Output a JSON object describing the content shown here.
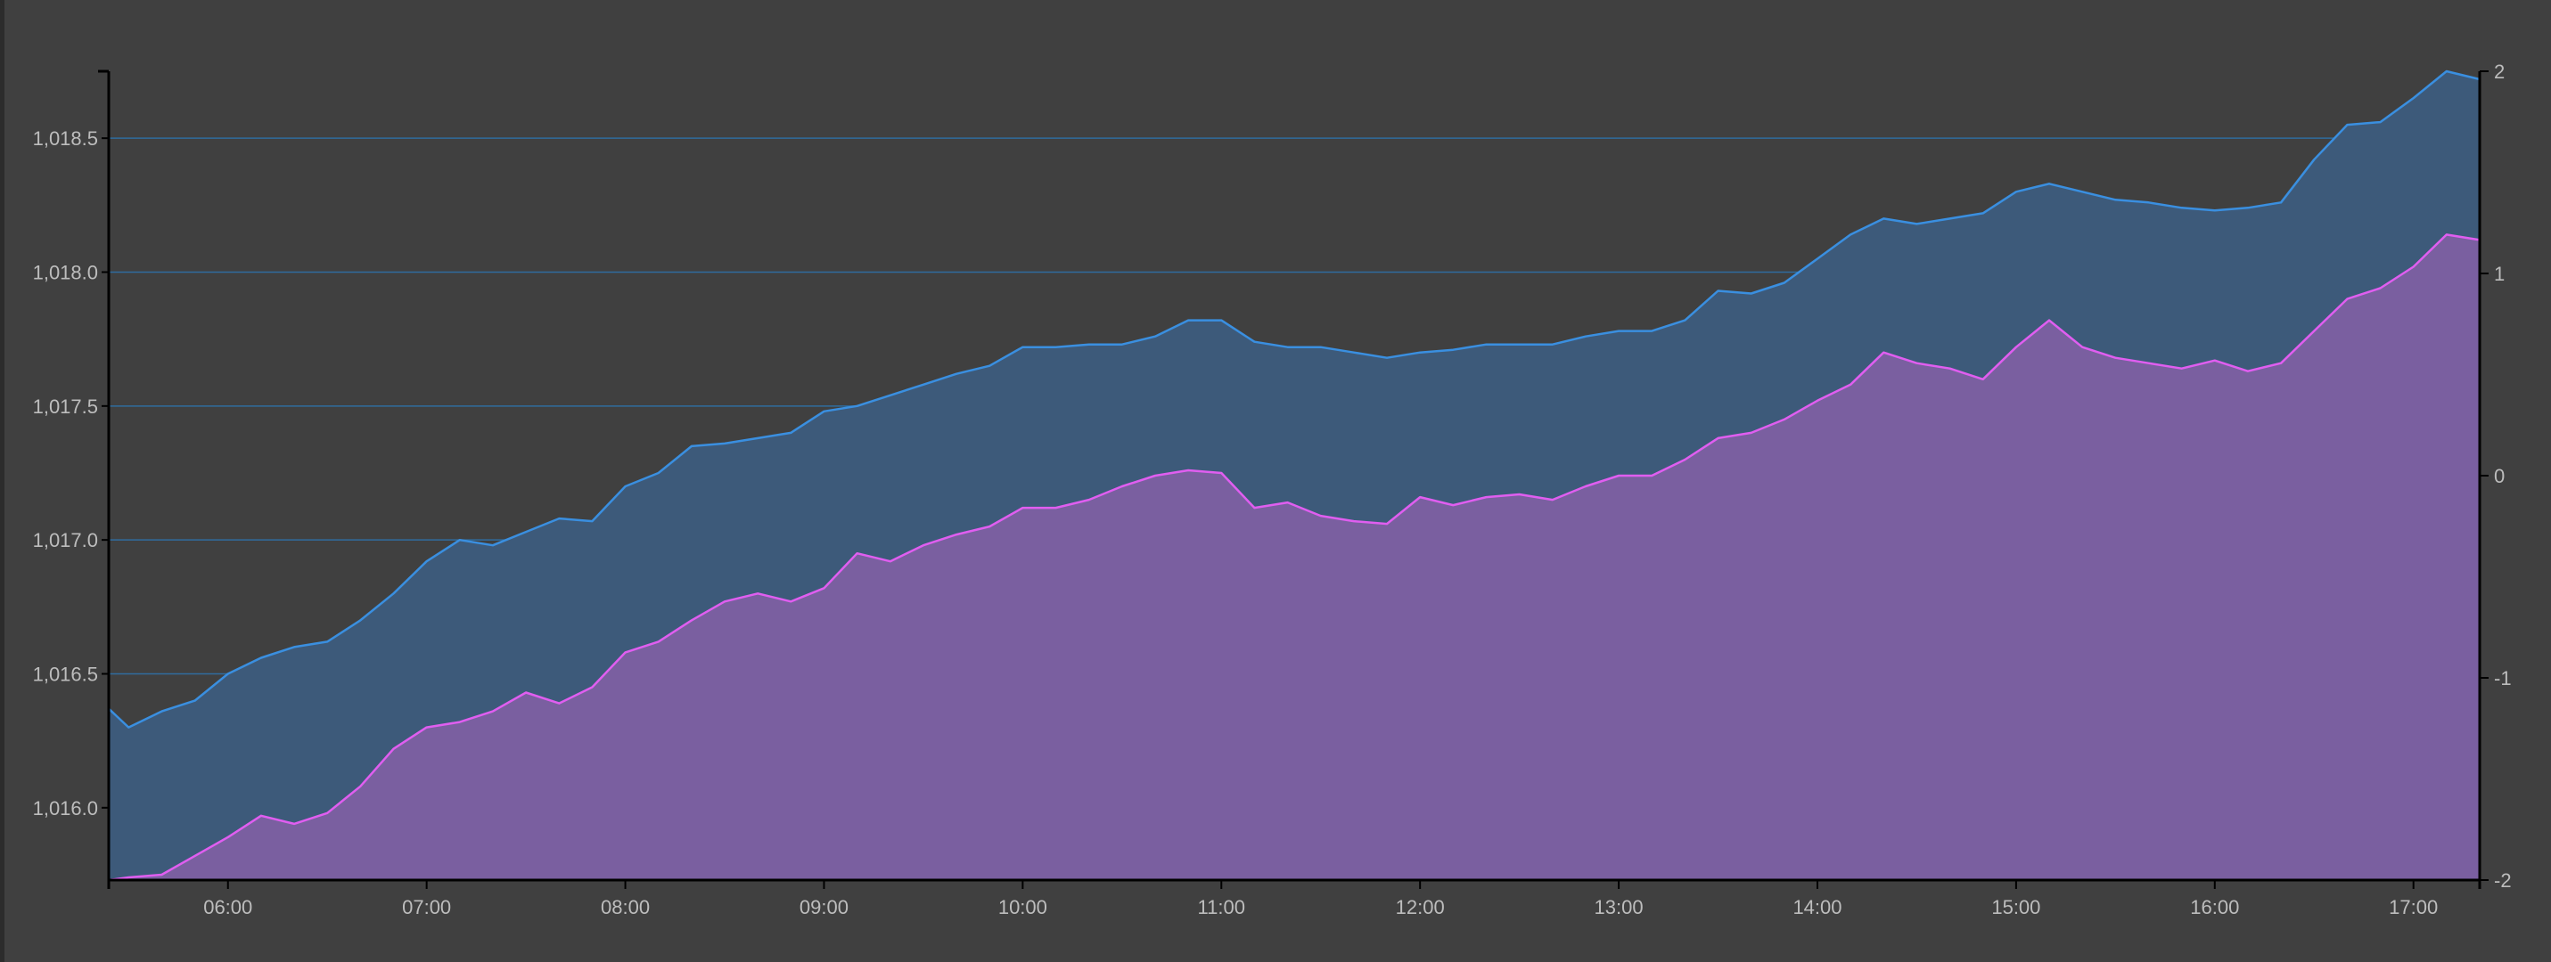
{
  "chart_data": {
    "type": "area",
    "title": "",
    "xlabel": "",
    "ylabel": "",
    "x_tick_labels": [
      "06:00",
      "07:00",
      "08:00",
      "09:00",
      "10:00",
      "11:00",
      "12:00",
      "13:00",
      "14:00",
      "15:00",
      "16:00",
      "17:00"
    ],
    "left_tick_labels": [
      "1,016.0",
      "1,016.5",
      "1,017.0",
      "1,017.5",
      "1,018.0",
      "1,018.5"
    ],
    "right_tick_labels": [
      "-2",
      "-1",
      "0",
      "1",
      "2"
    ],
    "x_range": [
      "05:24",
      "17:20"
    ],
    "left_ylim": [
      1015.73,
      1018.75
    ],
    "right_ylim": [
      -2,
      2
    ],
    "grid": "horizontal",
    "colors": {
      "background": "#404040",
      "grid": "#2f6c9e",
      "axis": "#000000",
      "series_blue_line": "#3a8fe0",
      "series_blue_fill": "#3d5a7a",
      "series_purple_line": "#e05ef0",
      "series_purple_fill": "#7a5fa0",
      "tick_text": "#bdbdbd"
    },
    "series": [
      {
        "axis": "left",
        "color": "#3a8fe0",
        "fill": "#3d5a7a",
        "points": [
          [
            "05:24",
            1016.37
          ],
          [
            "05:30",
            1016.3
          ],
          [
            "05:40",
            1016.36
          ],
          [
            "05:50",
            1016.4
          ],
          [
            "06:00",
            1016.5
          ],
          [
            "06:10",
            1016.56
          ],
          [
            "06:20",
            1016.6
          ],
          [
            "06:30",
            1016.62
          ],
          [
            "06:40",
            1016.7
          ],
          [
            "06:50",
            1016.8
          ],
          [
            "07:00",
            1016.92
          ],
          [
            "07:10",
            1017.0
          ],
          [
            "07:20",
            1016.98
          ],
          [
            "07:30",
            1017.03
          ],
          [
            "07:40",
            1017.08
          ],
          [
            "07:50",
            1017.07
          ],
          [
            "08:00",
            1017.2
          ],
          [
            "08:10",
            1017.25
          ],
          [
            "08:20",
            1017.35
          ],
          [
            "08:30",
            1017.36
          ],
          [
            "08:40",
            1017.38
          ],
          [
            "08:50",
            1017.4
          ],
          [
            "09:00",
            1017.48
          ],
          [
            "09:10",
            1017.5
          ],
          [
            "09:20",
            1017.54
          ],
          [
            "09:30",
            1017.58
          ],
          [
            "09:40",
            1017.62
          ],
          [
            "09:50",
            1017.65
          ],
          [
            "10:00",
            1017.72
          ],
          [
            "10:10",
            1017.72
          ],
          [
            "10:20",
            1017.73
          ],
          [
            "10:30",
            1017.73
          ],
          [
            "10:40",
            1017.76
          ],
          [
            "10:50",
            1017.82
          ],
          [
            "11:00",
            1017.82
          ],
          [
            "11:10",
            1017.74
          ],
          [
            "11:20",
            1017.72
          ],
          [
            "11:30",
            1017.72
          ],
          [
            "11:40",
            1017.7
          ],
          [
            "11:50",
            1017.68
          ],
          [
            "12:00",
            1017.7
          ],
          [
            "12:10",
            1017.71
          ],
          [
            "12:20",
            1017.73
          ],
          [
            "12:30",
            1017.73
          ],
          [
            "12:40",
            1017.73
          ],
          [
            "12:50",
            1017.76
          ],
          [
            "13:00",
            1017.78
          ],
          [
            "13:10",
            1017.78
          ],
          [
            "13:20",
            1017.82
          ],
          [
            "13:30",
            1017.93
          ],
          [
            "13:40",
            1017.92
          ],
          [
            "13:50",
            1017.96
          ],
          [
            "14:00",
            1018.05
          ],
          [
            "14:10",
            1018.14
          ],
          [
            "14:20",
            1018.2
          ],
          [
            "14:30",
            1018.18
          ],
          [
            "14:40",
            1018.2
          ],
          [
            "14:50",
            1018.22
          ],
          [
            "15:00",
            1018.3
          ],
          [
            "15:10",
            1018.33
          ],
          [
            "15:20",
            1018.3
          ],
          [
            "15:30",
            1018.27
          ],
          [
            "15:40",
            1018.26
          ],
          [
            "15:50",
            1018.24
          ],
          [
            "16:00",
            1018.23
          ],
          [
            "16:10",
            1018.24
          ],
          [
            "16:20",
            1018.26
          ],
          [
            "16:30",
            1018.42
          ],
          [
            "16:40",
            1018.55
          ],
          [
            "16:50",
            1018.56
          ],
          [
            "17:00",
            1018.65
          ],
          [
            "17:10",
            1018.75
          ],
          [
            "17:20",
            1018.72
          ]
        ]
      },
      {
        "axis": "left",
        "color": "#e05ef0",
        "fill": "#7a5fa0",
        "points": [
          [
            "05:24",
            1015.73
          ],
          [
            "05:30",
            1015.74
          ],
          [
            "05:40",
            1015.75
          ],
          [
            "05:50",
            1015.82
          ],
          [
            "06:00",
            1015.89
          ],
          [
            "06:10",
            1015.97
          ],
          [
            "06:20",
            1015.94
          ],
          [
            "06:30",
            1015.98
          ],
          [
            "06:40",
            1016.08
          ],
          [
            "06:50",
            1016.22
          ],
          [
            "07:00",
            1016.3
          ],
          [
            "07:10",
            1016.32
          ],
          [
            "07:20",
            1016.36
          ],
          [
            "07:30",
            1016.43
          ],
          [
            "07:40",
            1016.39
          ],
          [
            "07:50",
            1016.45
          ],
          [
            "08:00",
            1016.58
          ],
          [
            "08:10",
            1016.62
          ],
          [
            "08:20",
            1016.7
          ],
          [
            "08:30",
            1016.77
          ],
          [
            "08:40",
            1016.8
          ],
          [
            "08:50",
            1016.77
          ],
          [
            "09:00",
            1016.82
          ],
          [
            "09:10",
            1016.95
          ],
          [
            "09:20",
            1016.92
          ],
          [
            "09:30",
            1016.98
          ],
          [
            "09:40",
            1017.02
          ],
          [
            "09:50",
            1017.05
          ],
          [
            "10:00",
            1017.12
          ],
          [
            "10:10",
            1017.12
          ],
          [
            "10:20",
            1017.15
          ],
          [
            "10:30",
            1017.2
          ],
          [
            "10:40",
            1017.24
          ],
          [
            "10:50",
            1017.26
          ],
          [
            "11:00",
            1017.25
          ],
          [
            "11:10",
            1017.12
          ],
          [
            "11:20",
            1017.14
          ],
          [
            "11:30",
            1017.09
          ],
          [
            "11:40",
            1017.07
          ],
          [
            "11:50",
            1017.06
          ],
          [
            "12:00",
            1017.16
          ],
          [
            "12:10",
            1017.13
          ],
          [
            "12:20",
            1017.16
          ],
          [
            "12:30",
            1017.17
          ],
          [
            "12:40",
            1017.15
          ],
          [
            "12:50",
            1017.2
          ],
          [
            "13:00",
            1017.24
          ],
          [
            "13:10",
            1017.24
          ],
          [
            "13:20",
            1017.3
          ],
          [
            "13:30",
            1017.38
          ],
          [
            "13:40",
            1017.4
          ],
          [
            "13:50",
            1017.45
          ],
          [
            "14:00",
            1017.52
          ],
          [
            "14:10",
            1017.58
          ],
          [
            "14:20",
            1017.7
          ],
          [
            "14:30",
            1017.66
          ],
          [
            "14:40",
            1017.64
          ],
          [
            "14:50",
            1017.6
          ],
          [
            "15:00",
            1017.72
          ],
          [
            "15:10",
            1017.82
          ],
          [
            "15:20",
            1017.72
          ],
          [
            "15:30",
            1017.68
          ],
          [
            "15:40",
            1017.66
          ],
          [
            "15:50",
            1017.64
          ],
          [
            "16:00",
            1017.67
          ],
          [
            "16:10",
            1017.63
          ],
          [
            "16:20",
            1017.66
          ],
          [
            "16:30",
            1017.78
          ],
          [
            "16:40",
            1017.9
          ],
          [
            "16:50",
            1017.94
          ],
          [
            "17:00",
            1018.02
          ],
          [
            "17:10",
            1018.14
          ],
          [
            "17:20",
            1018.12
          ]
        ]
      }
    ]
  }
}
